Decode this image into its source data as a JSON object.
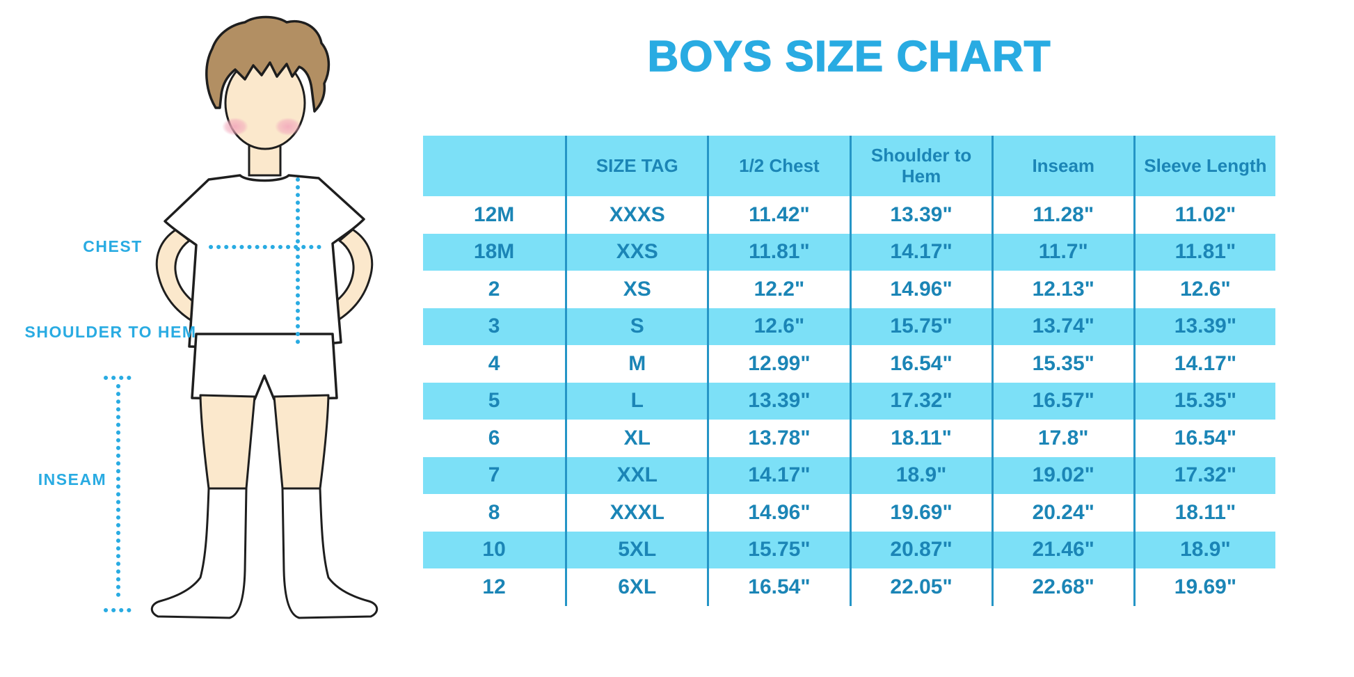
{
  "title": "BOYS SIZE CHART",
  "figure": {
    "description": "illustration of a boy in white t-shirt, shorts and knee socks with measurement guides",
    "labels": {
      "chest": "CHEST",
      "shoulder_to_hem": "SHOULDER TO HEM",
      "inseam": "INSEAM"
    }
  },
  "colors": {
    "accent_blue": "#29ABE2",
    "table_text": "#1B85B6",
    "stripe_bg": "#7CE0F7",
    "divider": "#2595C6",
    "skin": "#FBE8CC",
    "hair": "#B28F63",
    "cheek": "#F2A9BC",
    "outline": "#1E1E1E"
  },
  "chart_data": {
    "type": "table",
    "title": "BOYS SIZE CHART",
    "columns": [
      "",
      "SIZE TAG",
      "1/2 Chest",
      "Shoulder to Hem",
      "Inseam",
      "Sleeve Length"
    ],
    "rows": [
      [
        "12M",
        "XXXS",
        "11.42\"",
        "13.39\"",
        "11.28\"",
        "11.02\""
      ],
      [
        "18M",
        "XXS",
        "11.81\"",
        "14.17\"",
        "11.7\"",
        "11.81\""
      ],
      [
        "2",
        "XS",
        "12.2\"",
        "14.96\"",
        "12.13\"",
        "12.6\""
      ],
      [
        "3",
        "S",
        "12.6\"",
        "15.75\"",
        "13.74\"",
        "13.39\""
      ],
      [
        "4",
        "M",
        "12.99\"",
        "16.54\"",
        "15.35\"",
        "14.17\""
      ],
      [
        "5",
        "L",
        "13.39\"",
        "17.32\"",
        "16.57\"",
        "15.35\""
      ],
      [
        "6",
        "XL",
        "13.78\"",
        "18.11\"",
        "17.8\"",
        "16.54\""
      ],
      [
        "7",
        "XXL",
        "14.17\"",
        "18.9\"",
        "19.02\"",
        "17.32\""
      ],
      [
        "8",
        "XXXL",
        "14.96\"",
        "19.69\"",
        "20.24\"",
        "18.11\""
      ],
      [
        "10",
        "5XL",
        "15.75\"",
        "20.87\"",
        "21.46\"",
        "18.9\""
      ],
      [
        "12",
        "6XL",
        "16.54\"",
        "22.05\"",
        "22.68\"",
        "19.69\""
      ]
    ],
    "layout": {
      "striped_rows": "header and every second data row filled light blue",
      "column_dividers": true,
      "row_dividers": false
    }
  }
}
